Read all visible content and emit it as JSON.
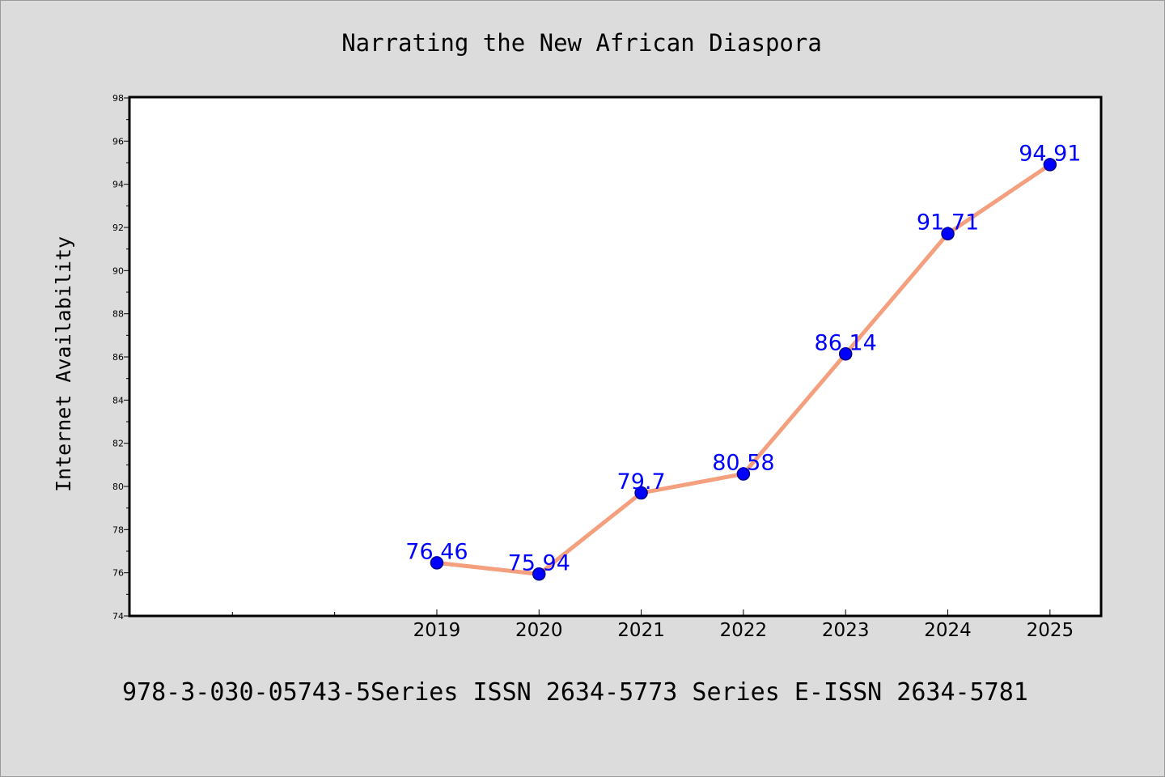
{
  "chart_data": {
    "type": "line",
    "title": "Narrating the New African Diaspora",
    "ylabel": "Internet Availability",
    "xlabel": "",
    "footer": "978-3-030-05743-5Series ISSN 2634-5773 Series E-ISSN 2634-5781",
    "x_range": [
      2016,
      2025.5
    ],
    "ylim": [
      74,
      98
    ],
    "y_ticks": [
      74,
      76,
      78,
      80,
      82,
      84,
      86,
      88,
      90,
      92,
      94,
      96,
      98
    ],
    "x_ticks_labeled": [
      2019,
      2020,
      2021,
      2022,
      2023,
      2024,
      2025
    ],
    "x_ticks_unlabeled": [
      2016,
      2017,
      2018
    ],
    "x": [
      2019,
      2020,
      2021,
      2022,
      2023,
      2024,
      2025
    ],
    "values": [
      76.46,
      75.94,
      79.7,
      80.58,
      86.14,
      91.71,
      94.91
    ],
    "data_labels": [
      "76.46",
      "75.94",
      "79.7",
      "80.58",
      "86.14",
      "91.71",
      "94.91"
    ],
    "grid": false,
    "colors": {
      "line": "#f4a07e",
      "marker": "#0000ff",
      "marker_edge": "#00008b",
      "label": "#0000ff",
      "frame": "#000000",
      "background": "#dcdcdc",
      "plot_background": "#ffffff"
    }
  }
}
